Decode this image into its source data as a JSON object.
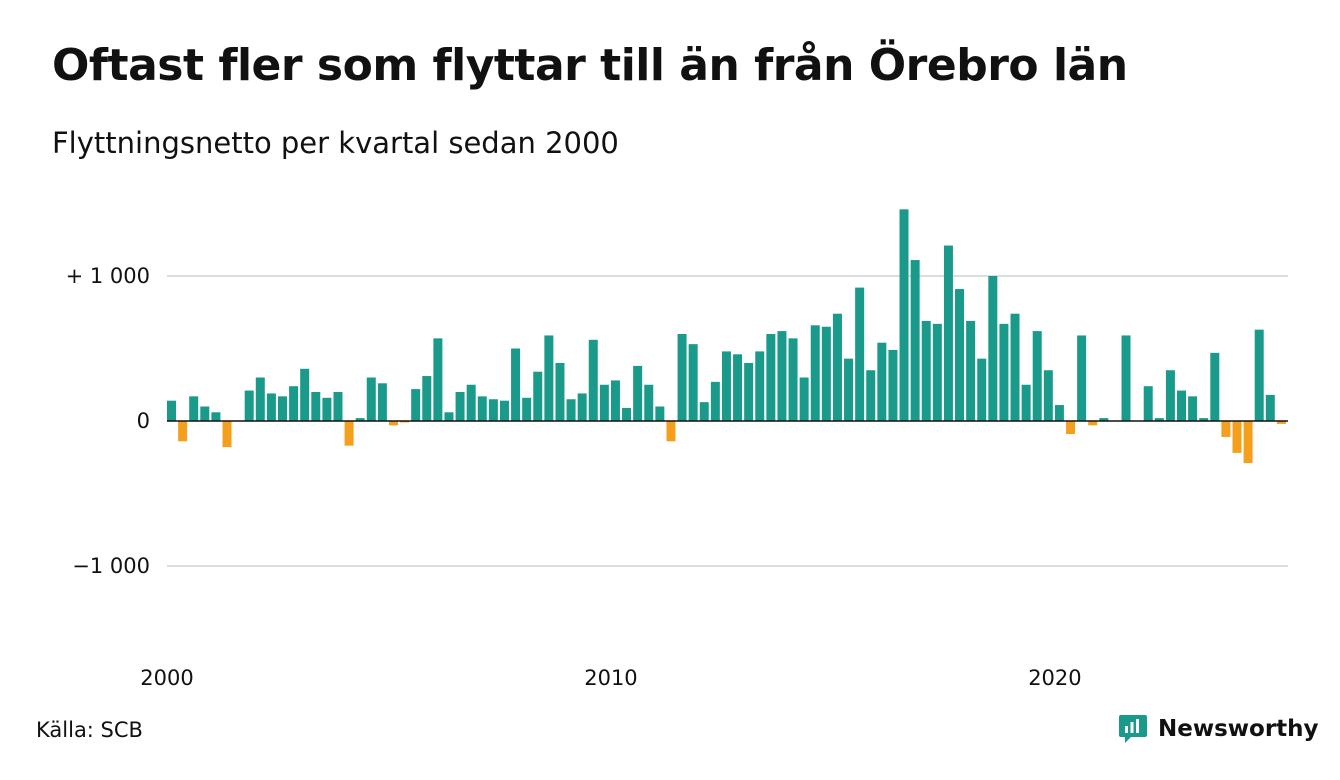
{
  "title": "Oftast fler som flyttar till än från Örebro län",
  "subtitle": "Flyttningsnetto per kvartal sedan 2000",
  "source": "Källa: SCB",
  "brand": "Newsworthy",
  "colors": {
    "positive": "#1a9a8a",
    "negative": "#f5a01d",
    "grid": "#dddddd",
    "baseline": "#111111",
    "brand": "#1a9a8a"
  },
  "chart_data": {
    "type": "bar",
    "ylim": [
      -1500,
      1500
    ],
    "yticks": [
      {
        "value": 1000,
        "label": "+ 1 000"
      },
      {
        "value": 0,
        "label": "0"
      },
      {
        "value": -1000,
        "label": "−1 000"
      }
    ],
    "xticks": [
      {
        "index": 0,
        "label": "2000"
      },
      {
        "index": 40,
        "label": "2010"
      },
      {
        "index": 80,
        "label": "2020"
      }
    ],
    "grid": true,
    "values": [
      140,
      -140,
      170,
      100,
      60,
      -180,
      0,
      210,
      300,
      190,
      170,
      240,
      360,
      200,
      160,
      200,
      -170,
      20,
      300,
      260,
      -30,
      -10,
      220,
      310,
      570,
      60,
      200,
      250,
      170,
      150,
      140,
      500,
      160,
      340,
      590,
      400,
      150,
      190,
      560,
      250,
      280,
      90,
      380,
      250,
      100,
      -140,
      600,
      530,
      130,
      270,
      480,
      460,
      400,
      480,
      600,
      620,
      570,
      300,
      660,
      650,
      740,
      430,
      920,
      350,
      540,
      490,
      1460,
      1110,
      690,
      670,
      1210,
      910,
      690,
      430,
      1000,
      670,
      740,
      250,
      620,
      350,
      110,
      -90,
      590,
      -30,
      20,
      0,
      590,
      0,
      240,
      20,
      350,
      210,
      170,
      20,
      470,
      -110,
      -220,
      -290,
      630,
      180,
      -20
    ]
  }
}
